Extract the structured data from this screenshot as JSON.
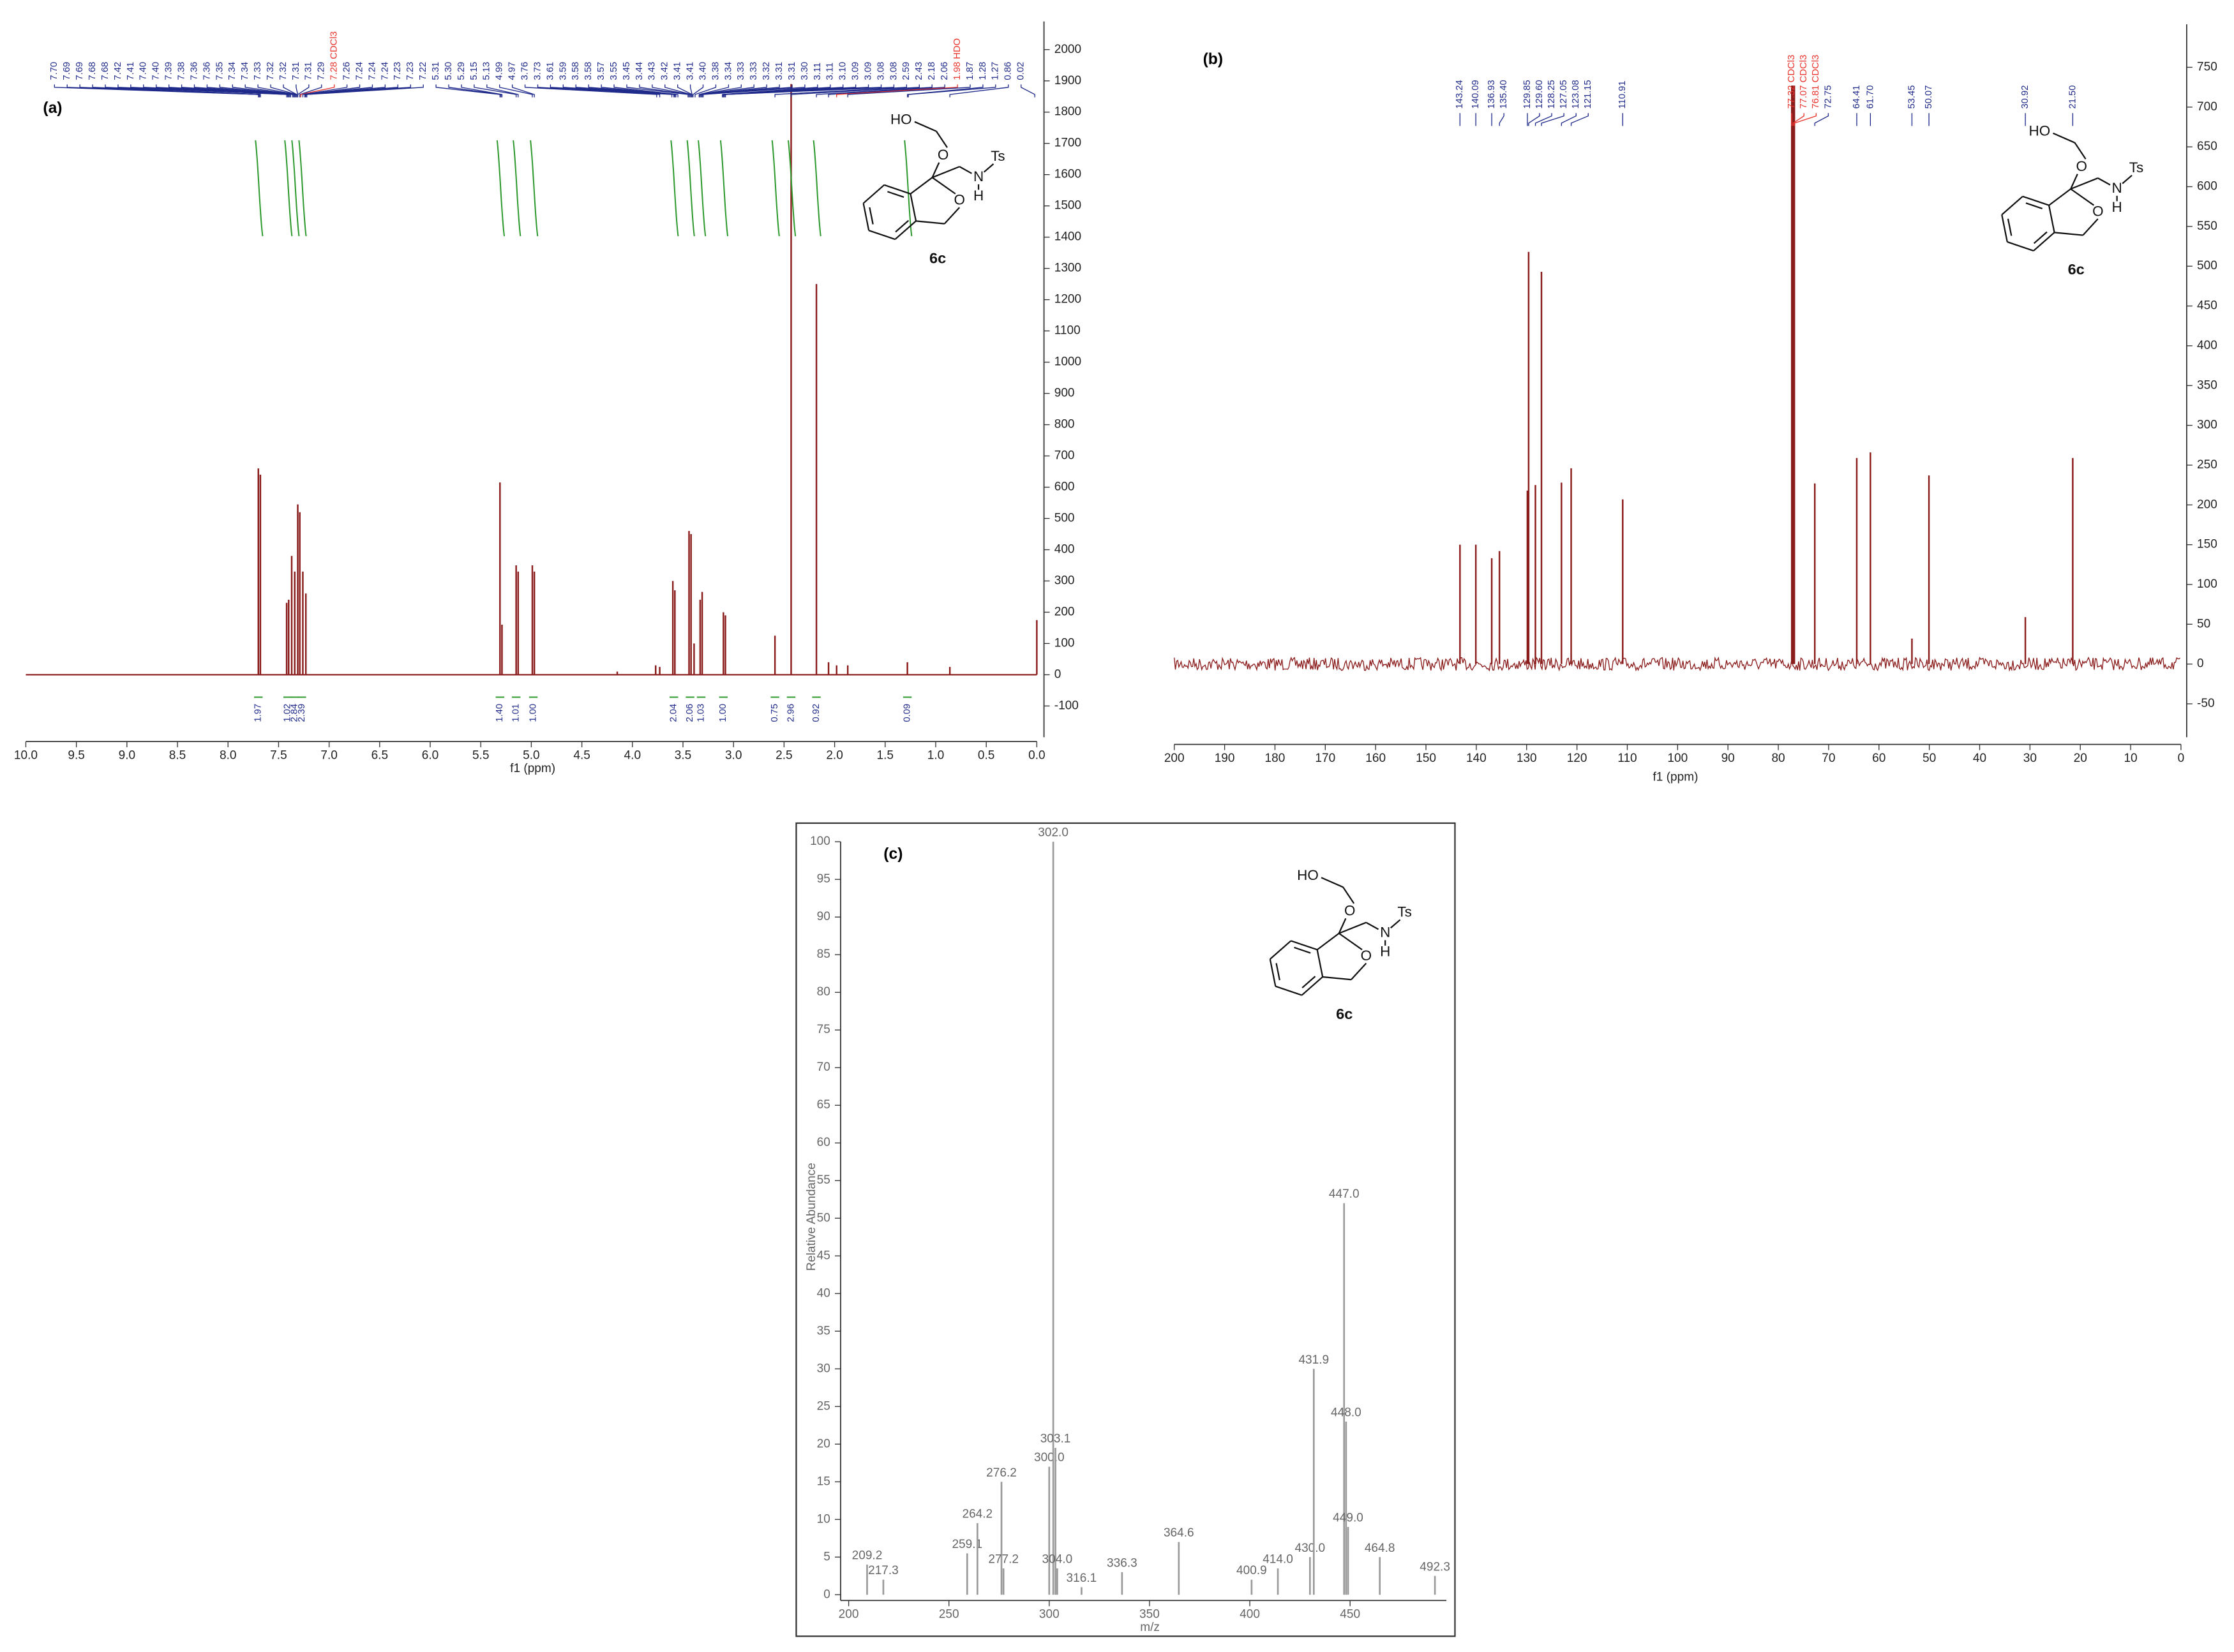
{
  "chart_data": [
    {
      "type": "spectrum",
      "panel_label": "(a)",
      "x_label": "f1 (ppm)",
      "xlim": [
        10,
        0
      ],
      "xticks": [
        {
          "value": 10,
          "label": "10.0"
        },
        9.5,
        {
          "value": 9,
          "label": "9.0"
        },
        8.5,
        {
          "value": 8,
          "label": "8.0"
        },
        7.5,
        {
          "value": 7,
          "label": "7.0"
        },
        6.5,
        {
          "value": 6,
          "label": "6.0"
        },
        5.5,
        {
          "value": 5,
          "label": "5.0"
        },
        4.5,
        {
          "value": 4,
          "label": "4.0"
        },
        3.5,
        {
          "value": 3,
          "label": "3.0"
        },
        2.5,
        {
          "value": 2,
          "label": "2.0"
        },
        1.5,
        {
          "value": 1,
          "label": "1.0"
        },
        0.5,
        {
          "value": 0,
          "label": "0.0"
        }
      ],
      "ylim": [
        -200,
        2090
      ],
      "yticks": [
        -100,
        0,
        100,
        200,
        300,
        400,
        500,
        600,
        700,
        800,
        900,
        1000,
        1100,
        1200,
        1300,
        1400,
        1500,
        1600,
        1700,
        1800,
        1900,
        2000
      ],
      "color": "#8b1c1c",
      "x": [
        7.7,
        7.68,
        7.42,
        7.4,
        7.37,
        7.34,
        7.31,
        7.29,
        7.26,
        7.23,
        5.31,
        5.29,
        5.15,
        5.13,
        4.99,
        4.97,
        4.15,
        3.77,
        3.73,
        3.6,
        3.58,
        3.44,
        3.42,
        3.39,
        3.33,
        3.31,
        3.1,
        3.08,
        2.59,
        2.43,
        2.18,
        2.06,
        1.98,
        1.87,
        1.28,
        0.86,
        0
      ],
      "values": [
        660,
        640,
        230,
        240,
        380,
        330,
        545,
        520,
        330,
        260,
        615,
        160,
        350,
        330,
        350,
        330,
        10,
        30,
        25,
        300,
        270,
        460,
        450,
        100,
        240,
        265,
        200,
        190,
        125,
        1890,
        1250,
        40,
        30,
        30,
        40,
        25,
        175
      ],
      "peak_list": {
        "color": "#1f2a8a",
        "highlight_color": "#e8322b",
        "x": [
          7.7,
          7.69,
          7.69,
          7.68,
          7.68,
          7.42,
          7.41,
          7.4,
          7.4,
          7.39,
          7.38,
          7.36,
          7.36,
          7.35,
          7.34,
          7.34,
          7.33,
          7.32,
          7.32,
          7.31,
          7.31,
          7.29,
          7.28,
          7.26,
          7.24,
          7.24,
          7.24,
          7.23,
          7.23,
          7.22,
          5.31,
          5.3,
          5.29,
          5.15,
          5.13,
          4.99,
          4.97,
          3.76,
          3.73,
          3.61,
          3.59,
          3.58,
          3.58,
          3.57,
          3.55,
          3.45,
          3.44,
          3.43,
          3.42,
          3.41,
          3.41,
          3.4,
          3.38,
          3.34,
          3.33,
          3.33,
          3.32,
          3.31,
          3.31,
          3.3,
          3.11,
          3.11,
          3.1,
          3.09,
          3.09,
          3.08,
          3.08,
          2.59,
          2.43,
          2.18,
          2.06,
          1.98,
          1.87,
          1.28,
          1.27,
          0.86,
          0.02
        ],
        "labels": [
          "7.70",
          "7.69",
          "7.69",
          "7.68",
          "7.68",
          "7.42",
          "7.41",
          "7.40",
          "7.40",
          "7.39",
          "7.38",
          "7.36",
          "7.36",
          "7.35",
          "7.34",
          "7.34",
          "7.33",
          "7.32",
          "7.32",
          "7.31",
          "7.31",
          "7.29",
          "7.28 CDCl3",
          "7.26",
          "7.24",
          "7.24",
          "7.24",
          "7.23",
          "7.23",
          "7.22",
          "5.31",
          "5.30",
          "5.29",
          "5.15",
          "5.13",
          "4.99",
          "4.97",
          "3.76",
          "3.73",
          "3.61",
          "3.59",
          "3.58",
          "3.58",
          "3.57",
          "3.55",
          "3.45",
          "3.44",
          "3.43",
          "3.42",
          "3.41",
          "3.41",
          "3.40",
          "3.38",
          "3.34",
          "3.33",
          "3.33",
          "3.32",
          "3.31",
          "3.31",
          "3.30",
          "3.11",
          "3.11",
          "3.10",
          "3.09",
          "3.09",
          "3.08",
          "3.08",
          "2.59",
          "2.43",
          "2.18",
          "2.06",
          "1.98 HDO",
          "1.87",
          "1.28",
          "1.27",
          "0.86",
          "0.02"
        ]
      },
      "integrals": {
        "color": "#2e9a2e",
        "label_color": "#1f2a8a",
        "x": [
          7.7,
          7.41,
          7.34,
          7.27,
          5.31,
          5.15,
          4.98,
          3.59,
          3.43,
          3.32,
          3.1,
          2.59,
          2.43,
          2.18,
          1.28
        ],
        "labels": [
          "1.97",
          "1.02",
          "2.84",
          "2.39",
          "1.40",
          "1.01",
          "1.00",
          "2.04",
          "2.06",
          "1.03",
          "1.00",
          "0.75",
          "2.96",
          "0.92",
          "0.09"
        ]
      },
      "structure": {
        "labels": [
          "HO",
          "O",
          "N",
          "Ts",
          "H",
          "O"
        ],
        "name": "6c"
      }
    },
    {
      "type": "spectrum",
      "panel_label": "(b)",
      "x_label": "f1 (ppm)",
      "xlim": [
        200,
        0
      ],
      "xticks": [
        200,
        190,
        180,
        170,
        160,
        150,
        140,
        130,
        120,
        110,
        100,
        90,
        80,
        70,
        60,
        50,
        40,
        30,
        20,
        10,
        0
      ],
      "ylim": [
        -92,
        804
      ],
      "yticks": [
        -50,
        0,
        50,
        100,
        150,
        200,
        250,
        300,
        350,
        400,
        450,
        500,
        550,
        600,
        650,
        700,
        750
      ],
      "color": "#8b1c1c",
      "noise": true,
      "x": [
        143.24,
        140.09,
        136.93,
        135.4,
        129.85,
        129.6,
        128.25,
        127.05,
        123.08,
        121.15,
        110.91,
        77.32,
        77.07,
        76.81,
        72.75,
        64.41,
        61.7,
        53.45,
        50.07,
        30.92,
        21.5
      ],
      "values": [
        150,
        150,
        133,
        142,
        218,
        518,
        225,
        493,
        228,
        246,
        207,
        727,
        727,
        727,
        227,
        259,
        266,
        32,
        237,
        59,
        259
      ],
      "peak_list": {
        "color": "#1f2a8a",
        "highlight_color": "#e8322b",
        "x": [
          143.24,
          140.09,
          136.93,
          135.4,
          129.85,
          129.6,
          128.25,
          127.05,
          123.08,
          121.15,
          110.91,
          77.32,
          77.07,
          76.81,
          72.75,
          64.41,
          61.7,
          53.45,
          50.07,
          30.92,
          21.5
        ],
        "labels": [
          "143.24",
          "140.09",
          "136.93",
          "135.40",
          "129.85",
          "129.60",
          "128.25",
          "127.05",
          "123.08",
          "121.15",
          "110.91",
          "77.32 CDCl3",
          "77.07 CDCl3",
          "76.81 CDCl3",
          "72.75",
          "64.41",
          "61.70",
          "53.45",
          "50.07",
          "30.92",
          "21.50"
        ]
      },
      "structure": {
        "labels": [
          "HO",
          "O",
          "N",
          "Ts",
          "H",
          "O"
        ],
        "name": "6c"
      }
    },
    {
      "type": "mass",
      "panel_label": "(c)",
      "x_label": "m/z",
      "y_label": "Relative Abundance",
      "xlim": [
        196,
        498
      ],
      "xticks": [
        200,
        250,
        300,
        350,
        400,
        450
      ],
      "ylim": [
        0,
        100
      ],
      "yticks": [
        0,
        5,
        10,
        15,
        20,
        25,
        30,
        35,
        40,
        45,
        50,
        55,
        60,
        65,
        70,
        75,
        80,
        85,
        90,
        95,
        100
      ],
      "color": "#9a9a9a",
      "x": [
        209.2,
        217.3,
        259.1,
        264.2,
        276.2,
        277.2,
        300.0,
        302.0,
        303.1,
        304.0,
        316.1,
        336.3,
        364.6,
        400.9,
        414.0,
        430.0,
        431.9,
        447.0,
        448.0,
        449.0,
        464.8,
        492.3
      ],
      "values": [
        4,
        2,
        5.5,
        9.5,
        15,
        3.5,
        17,
        100,
        19.5,
        3.5,
        1,
        3,
        7,
        2,
        3.5,
        5,
        30,
        52,
        23,
        9,
        5,
        2.5
      ],
      "peak_labels": [
        "209.2",
        "217.3",
        "259.1",
        "264.2",
        "276.2",
        "277.2",
        "300.0",
        "302.0",
        "303.1",
        "304.0",
        "316.1",
        "336.3",
        "364.6",
        "400.9",
        "414.0",
        "430.0",
        "431.9",
        "447.0",
        "448.0",
        "449.0",
        "464.8",
        "492.3"
      ],
      "structure": {
        "labels": [
          "HO",
          "O",
          "N",
          "Ts",
          "H",
          "O"
        ],
        "name": "6c"
      }
    }
  ]
}
